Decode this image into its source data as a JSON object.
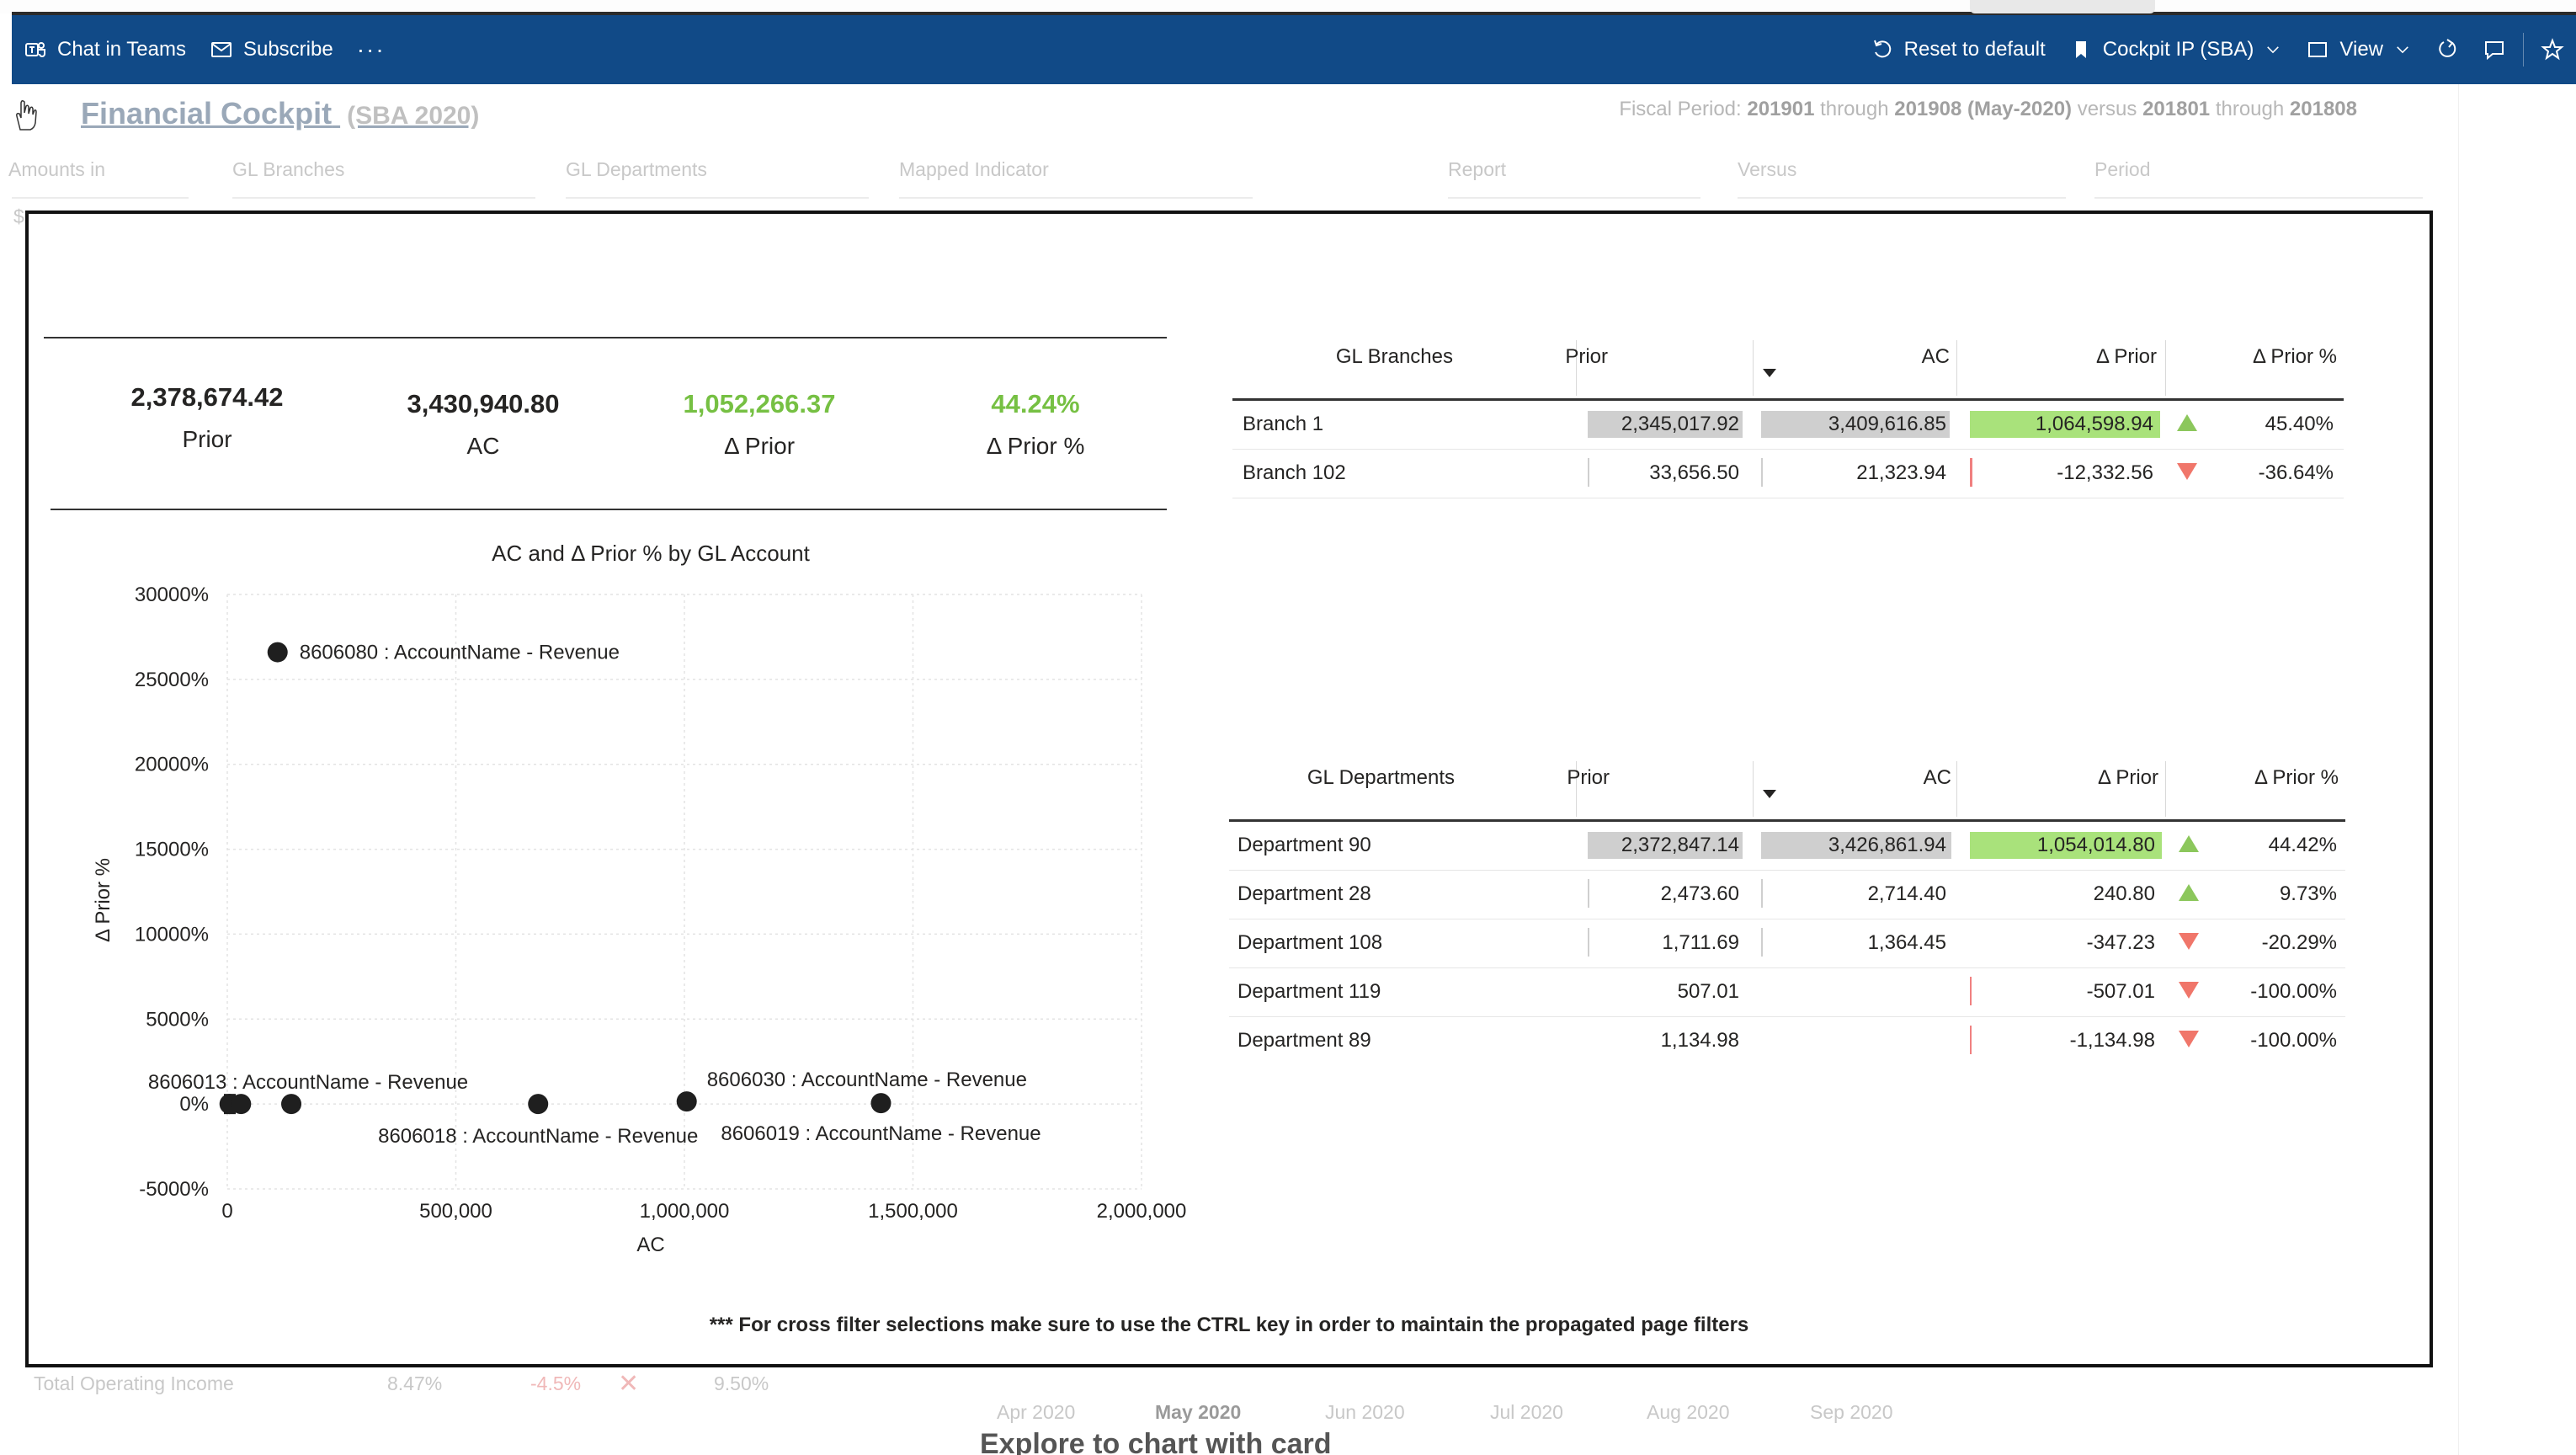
{
  "actionbar": {
    "chat_in_teams": "Chat in Teams",
    "subscribe": "Subscribe",
    "more": "···",
    "reset_to_default": "Reset to default",
    "bookmark": "Cockpit IP (SBA)",
    "view": "View"
  },
  "background": {
    "title": "Financial Cockpit",
    "title_sub": "(SBA 2020)",
    "fiscal": {
      "prefix": "Fiscal Period:",
      "from": "201901",
      "through_word": "through",
      "to": "201908 (May-2020)",
      "versus_word": "versus",
      "vs_from": "201801",
      "vs_through_word": "through",
      "vs_to": "201808"
    },
    "slicers": [
      "Amounts in",
      "GL Branches",
      "GL Departments",
      "Mapped Indicator",
      "Report",
      "Versus",
      "Period"
    ],
    "slicer_value_1": "$",
    "bottom_row": {
      "label": "Total Operating Income",
      "v1": "8.47%",
      "v2": "-4.5%",
      "v3": "9.50%"
    },
    "months": [
      "Apr 2020",
      "May 2020",
      "Jun 2020",
      "Jul 2020",
      "Aug 2020",
      "Sep 2020"
    ],
    "bottom_title": "Explore to chart with card"
  },
  "kpis": [
    {
      "value": "2,378,674.42",
      "label": "Prior",
      "green": false
    },
    {
      "value": "3,430,940.80",
      "label": "AC",
      "green": false
    },
    {
      "value": "1,052,266.37",
      "label": "Δ Prior",
      "green": true
    },
    {
      "value": "44.24%",
      "label": "Δ Prior %",
      "green": true
    }
  ],
  "chart_data": {
    "type": "scatter",
    "title": "AC and Δ Prior % by GL Account",
    "xlabel": "AC",
    "ylabel": "Δ Prior %",
    "xlim": [
      0,
      2000000
    ],
    "ylim": [
      -5000,
      30000
    ],
    "x_ticks": [
      "0",
      "500,000",
      "1,000,000",
      "1,500,000",
      "2,000,000"
    ],
    "y_ticks": [
      "30000%",
      "25000%",
      "20000%",
      "15000%",
      "10000%",
      "5000%",
      "0%",
      "-5000%"
    ],
    "grid": true,
    "points": [
      {
        "x": 110000,
        "y": 26600,
        "label": "8606080 : AccountName - Revenue"
      },
      {
        "x": 5000,
        "y": 0,
        "label": ""
      },
      {
        "x": 30000,
        "y": 0,
        "label": ""
      },
      {
        "x": 140000,
        "y": 0,
        "label": "8606013 : AccountName - Revenue"
      },
      {
        "x": 680000,
        "y": 0,
        "label": "8606018 : AccountName - Revenue"
      },
      {
        "x": 1005000,
        "y": 150,
        "label": "8606030 : AccountName - Revenue"
      },
      {
        "x": 1430000,
        "y": 50,
        "label": "8606019 : AccountName - Revenue"
      }
    ]
  },
  "branches_table": {
    "headers": [
      "GL Branches",
      "Prior",
      "AC",
      "Δ Prior",
      "Δ Prior %"
    ],
    "rows": [
      {
        "name": "Branch 1",
        "prior": "2,345,017.92",
        "ac": "3,409,616.85",
        "dprior": "1,064,598.94",
        "dprior_pct": "45.40%",
        "dir": "up",
        "highlight": true
      },
      {
        "name": "Branch 102",
        "prior": "33,656.50",
        "ac": "21,323.94",
        "dprior": "-12,332.56",
        "dprior_pct": "-36.64%",
        "dir": "down",
        "highlight": false
      }
    ]
  },
  "departments_table": {
    "headers": [
      "GL Departments",
      "Prior",
      "AC",
      "Δ Prior",
      "Δ Prior %"
    ],
    "rows": [
      {
        "name": "Department 90",
        "prior": "2,372,847.14",
        "ac": "3,426,861.94",
        "dprior": "1,054,014.80",
        "dprior_pct": "44.42%",
        "dir": "up",
        "highlight": true
      },
      {
        "name": "Department 28",
        "prior": "2,473.60",
        "ac": "2,714.40",
        "dprior": "240.80",
        "dprior_pct": "9.73%",
        "dir": "up",
        "highlight": false
      },
      {
        "name": "Department 108",
        "prior": "1,711.69",
        "ac": "1,364.45",
        "dprior": "-347.23",
        "dprior_pct": "-20.29%",
        "dir": "down",
        "highlight": false
      },
      {
        "name": "Department 119",
        "prior": "507.01",
        "ac": "",
        "dprior": "-507.01",
        "dprior_pct": "-100.00%",
        "dir": "down",
        "highlight": false
      },
      {
        "name": "Department 89",
        "prior": "1,134.98",
        "ac": "",
        "dprior": "-1,134.98",
        "dprior_pct": "-100.00%",
        "dir": "down",
        "highlight": false
      }
    ]
  },
  "footnote": "*** For cross filter selections make sure to use the CTRL key in order to maintain the propagated page filters"
}
